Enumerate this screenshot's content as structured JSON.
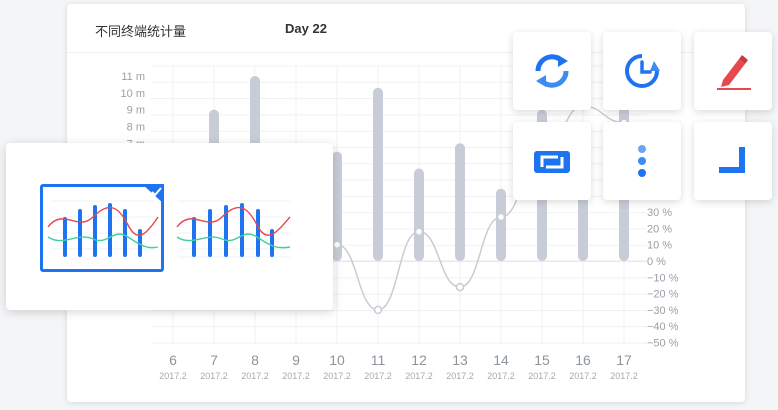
{
  "header": {
    "title": "不同终端统计量",
    "day": "Day 22"
  },
  "chart_data": {
    "type": "bar",
    "categories": [
      "6",
      "7",
      "8",
      "9",
      "10",
      "11",
      "12",
      "13",
      "14",
      "15",
      "16",
      "17"
    ],
    "sublabels": [
      "2017.2",
      "2017.2",
      "2017.2",
      "2017.2",
      "2017.2",
      "2017.2",
      "2017.2",
      "2017.2",
      "2017.2",
      "2017.2",
      "2017.2",
      "2017.2"
    ],
    "series": [
      {
        "kind": "bar",
        "axis": "left",
        "values": [
          null,
          9,
          11,
          null,
          6.5,
          10.3,
          5.5,
          7,
          4.3,
          9,
          8,
          9.5
        ]
      },
      {
        "kind": "line",
        "axis": "right",
        "values": [
          null,
          null,
          null,
          null,
          10,
          -30,
          18,
          -16,
          27,
          65,
          95,
          85
        ]
      }
    ],
    "left_ticks": [
      "11 m",
      "10 m",
      "9 m",
      "8 m",
      "7 m"
    ],
    "right_ticks": [
      "30 %",
      "20 %",
      "10 %",
      "0 %",
      "−10 %",
      "−20 %",
      "−30 %",
      "−40 %",
      "−50 %"
    ],
    "ylim_left": [
      0,
      11
    ],
    "ylim_right": [
      -50,
      100
    ]
  },
  "toolbar": {
    "buttons": [
      {
        "name": "refresh-icon",
        "color": "#1e74f0"
      },
      {
        "name": "history-icon",
        "color": "#1e74f0"
      },
      {
        "name": "pen-icon",
        "color": "#e5484d"
      },
      {
        "name": "swap-icon",
        "color": "#1e74f0"
      },
      {
        "name": "more-vertical-icon",
        "color": "#1e74f0"
      },
      {
        "name": "corner-icon",
        "color": "#1e74f0"
      }
    ]
  },
  "chart_picker": {
    "options": [
      {
        "name": "bar-line-chart-option",
        "selected": true
      },
      {
        "name": "bar-line-chart-option-alt",
        "selected": false
      }
    ]
  },
  "colors": {
    "accent": "#1e74f0",
    "bar": "#c8ccd6",
    "line": "#c9ccd2",
    "red": "#e5484d",
    "green": "#3ed19b"
  }
}
